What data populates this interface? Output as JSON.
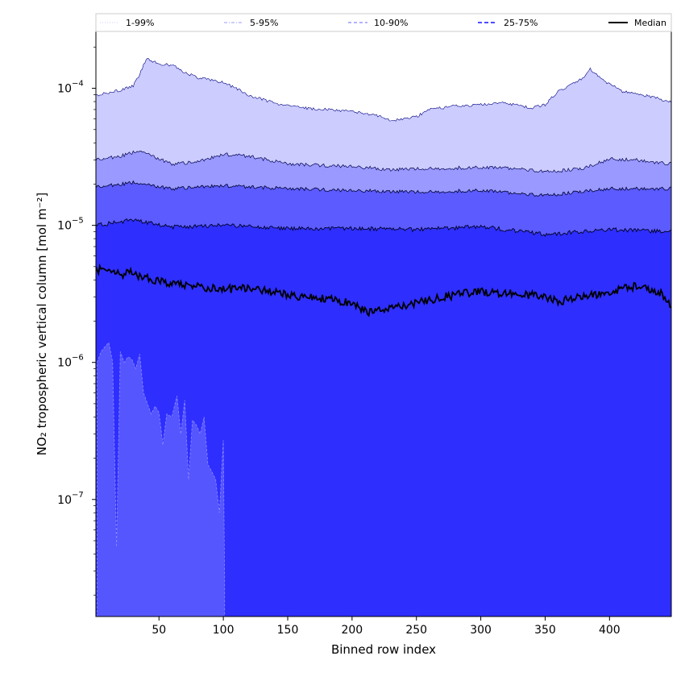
{
  "chart_data": {
    "type": "area",
    "title": "",
    "xlabel": "Binned row index",
    "ylabel": "NO₂ tropospheric vertical column [mol m⁻²]",
    "yscale": "log",
    "xlim": [
      1,
      448
    ],
    "ylim": [
      1.4e-08,
      0.00026
    ],
    "x_ticks": [
      50,
      100,
      150,
      200,
      250,
      300,
      350,
      400
    ],
    "x_tick_labels": [
      "50",
      "100",
      "150",
      "200",
      "250",
      "300",
      "350",
      "400"
    ],
    "y_ticks": [
      1e-07,
      1e-06,
      1e-05,
      0.0001
    ],
    "y_tick_base": "10",
    "y_tick_exponents": [
      "−7",
      "−6",
      "−5",
      "−4"
    ],
    "grid": false,
    "legend_position": "top, spanning full width",
    "legend": [
      {
        "label": "1-99%",
        "style": "dotted",
        "color": "#ccccff"
      },
      {
        "label": "5-95%",
        "style": "dashdot",
        "color": "#9999ff"
      },
      {
        "label": "10-90%",
        "style": "dashed",
        "color": "#6666ff"
      },
      {
        "label": "25-75%",
        "style": "dashed-bold",
        "color": "#3333ff"
      },
      {
        "label": "Median",
        "style": "solid",
        "color": "#000000"
      }
    ],
    "fill_colors": {
      "band_1_99": "#ccccff",
      "band_5_95": "#9999ff",
      "band_10_90": "#5b5bff",
      "band_25_75": "#2e2eff"
    },
    "series": [
      {
        "name": "1-99% upper (99th percentile)",
        "x": [
          1,
          10,
          20,
          30,
          35,
          40,
          50,
          60,
          70,
          80,
          100,
          110,
          120,
          140,
          160,
          180,
          200,
          220,
          230,
          250,
          260,
          280,
          300,
          320,
          340,
          350,
          360,
          380,
          385,
          395,
          410,
          430,
          448
        ],
        "values": [
          8.9e-05,
          9.3e-05,
          9.7e-05,
          0.000104,
          0.000125,
          0.000165,
          0.00015,
          0.000148,
          0.00013,
          0.00012,
          0.00011,
          0.0001,
          8.9e-05,
          7.8e-05,
          7.2e-05,
          7e-05,
          6.8e-05,
          6.3e-05,
          5.8e-05,
          6.2e-05,
          7e-05,
          7.4e-05,
          7.6e-05,
          7.8e-05,
          7.2e-05,
          7.6e-05,
          9.5e-05,
          0.00012,
          0.000138,
          0.000115,
          9.5e-05,
          8.8e-05,
          7.9e-05
        ]
      },
      {
        "name": "5-95% upper (95th percentile)",
        "x": [
          1,
          20,
          35,
          60,
          80,
          100,
          120,
          150,
          170,
          200,
          230,
          260,
          300,
          330,
          350,
          380,
          400,
          420,
          448
        ],
        "values": [
          3e-05,
          3.2e-05,
          3.5e-05,
          2.8e-05,
          2.9e-05,
          3.3e-05,
          3.2e-05,
          2.8e-05,
          2.75e-05,
          2.7e-05,
          2.55e-05,
          2.6e-05,
          2.65e-05,
          2.6e-05,
          2.45e-05,
          2.6e-05,
          3.05e-05,
          3e-05,
          2.8e-05
        ]
      },
      {
        "name": "10-90% upper (90th percentile)",
        "x": [
          1,
          30,
          60,
          100,
          150,
          200,
          250,
          300,
          350,
          400,
          448
        ],
        "values": [
          1.9e-05,
          2.05e-05,
          1.85e-05,
          1.95e-05,
          1.85e-05,
          1.8e-05,
          1.75e-05,
          1.8e-05,
          1.65e-05,
          1.85e-05,
          1.85e-05
        ]
      },
      {
        "name": "25-75% upper (75th percentile)",
        "x": [
          1,
          30,
          60,
          100,
          150,
          200,
          250,
          300,
          350,
          400,
          448
        ],
        "values": [
          1e-05,
          1.1e-05,
          9.7e-06,
          1e-05,
          9.5e-06,
          9.5e-06,
          9.3e-06,
          9.8e-06,
          8.6e-06,
          9.3e-06,
          9e-06
        ]
      },
      {
        "name": "Median",
        "x": [
          1,
          10,
          20,
          30,
          40,
          60,
          80,
          100,
          120,
          150,
          180,
          200,
          215,
          230,
          250,
          270,
          300,
          320,
          340,
          360,
          380,
          400,
          420,
          440,
          448
        ],
        "values": [
          4.8e-06,
          4.6e-06,
          4.4e-06,
          4.5e-06,
          4.1e-06,
          3.8e-06,
          3.6e-06,
          3.4e-06,
          3.5e-06,
          3.1e-06,
          2.9e-06,
          2.7e-06,
          2.3e-06,
          2.5e-06,
          2.7e-06,
          3e-06,
          3.3e-06,
          3.2e-06,
          3.1e-06,
          2.8e-06,
          3e-06,
          3.3e-06,
          3.6e-06,
          3.2e-06,
          2.6e-06
        ]
      },
      {
        "name": "Lower percentile spikes (x ≤ 100)",
        "x": [
          2,
          5,
          8,
          11,
          14,
          17,
          20,
          23,
          26,
          29,
          32,
          35,
          38,
          41,
          44,
          47,
          50,
          53,
          56,
          60,
          64,
          67,
          70,
          73,
          76,
          79,
          82,
          85,
          88,
          91,
          94,
          97,
          100,
          101
        ],
        "values": [
          1e-06,
          1.2e-06,
          1.3e-06,
          1.4e-06,
          1e-06,
          4.5e-08,
          1.2e-06,
          1e-06,
          1.1e-06,
          1.05e-06,
          9e-07,
          1.15e-06,
          6e-07,
          5e-07,
          4.2e-07,
          4.8e-07,
          4.3e-07,
          2.5e-07,
          4.2e-07,
          4e-07,
          5.7e-07,
          3e-07,
          5.3e-07,
          1.4e-07,
          3.8e-07,
          3.5e-07,
          3e-07,
          4e-07,
          1.8e-07,
          1.6e-07,
          1.4e-07,
          8e-08,
          2.7e-07,
          2.7e-08
        ]
      }
    ]
  }
}
